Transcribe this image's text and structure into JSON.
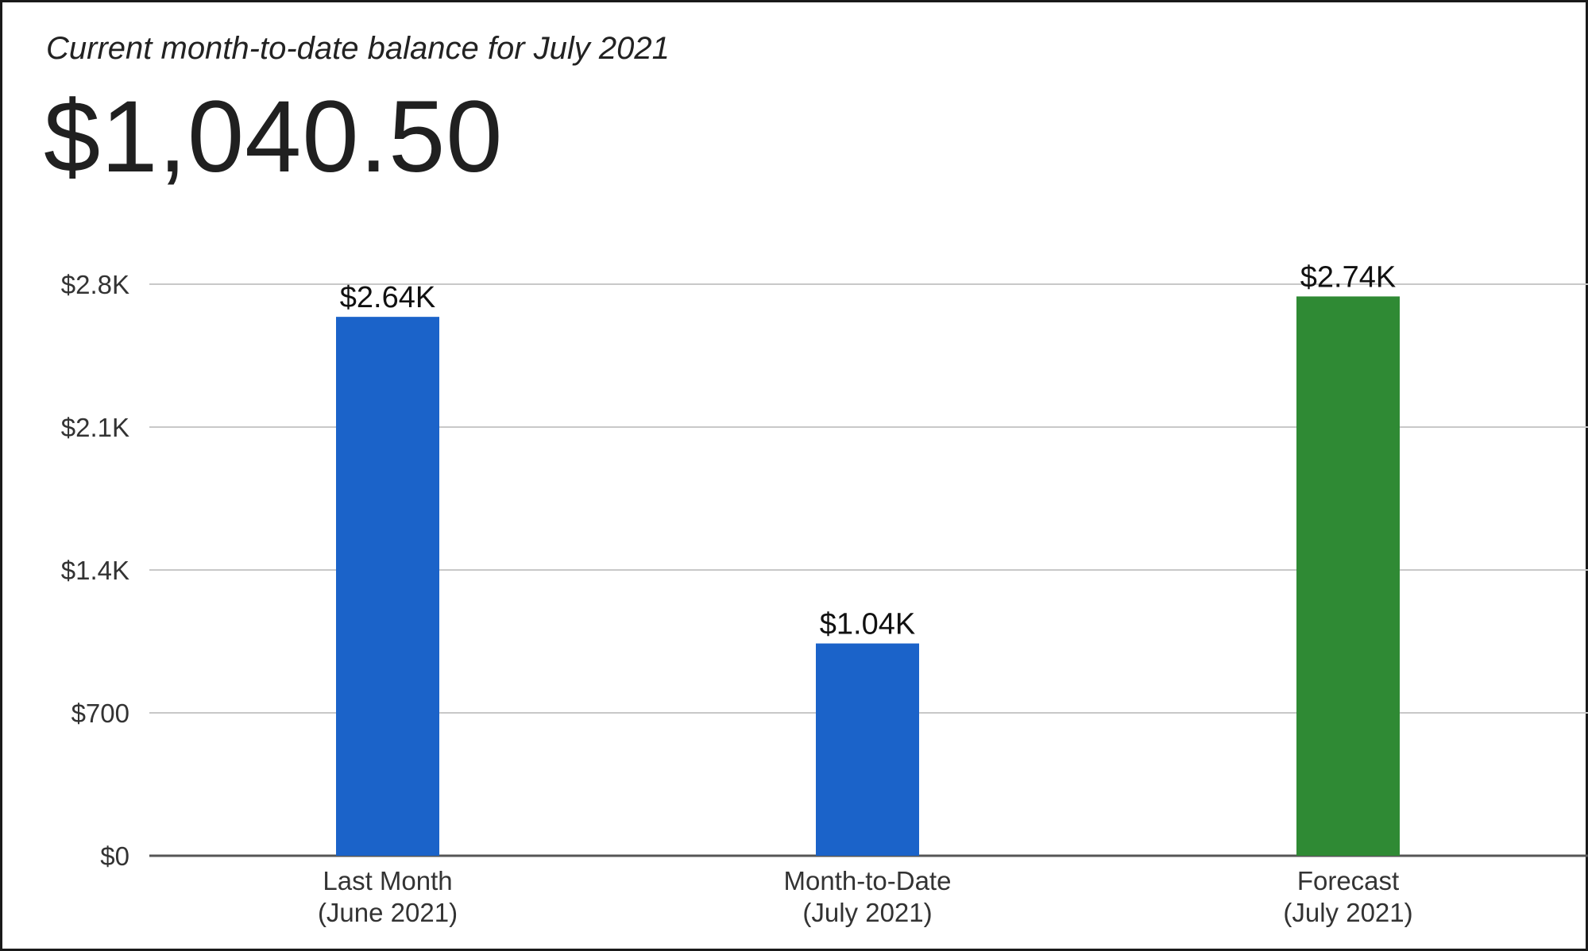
{
  "header": {
    "subtitle": "Current month-to-date balance for July 2021",
    "balance": "$1,040.50"
  },
  "chart_data": {
    "type": "bar",
    "categories": [
      [
        "Last Month",
        "(June 2021)"
      ],
      [
        "Month-to-Date",
        "(July 2021)"
      ],
      [
        "Forecast",
        "(July 2021)"
      ]
    ],
    "values": [
      2640,
      1040,
      2740
    ],
    "data_labels": [
      "$2.64K",
      "$1.04K",
      "$2.74K"
    ],
    "bar_colors": [
      "#1b63c9",
      "#1b63c9",
      "#2f8a34"
    ],
    "yticks": [
      0,
      700,
      1400,
      2100,
      2800
    ],
    "ytick_labels": [
      "$0",
      "$700",
      "$1.4K",
      "$2.1K",
      "$2.8K"
    ],
    "ylim": [
      0,
      2800
    ],
    "grid": true,
    "legend": "none",
    "title": "",
    "xlabel": "",
    "ylabel": ""
  }
}
